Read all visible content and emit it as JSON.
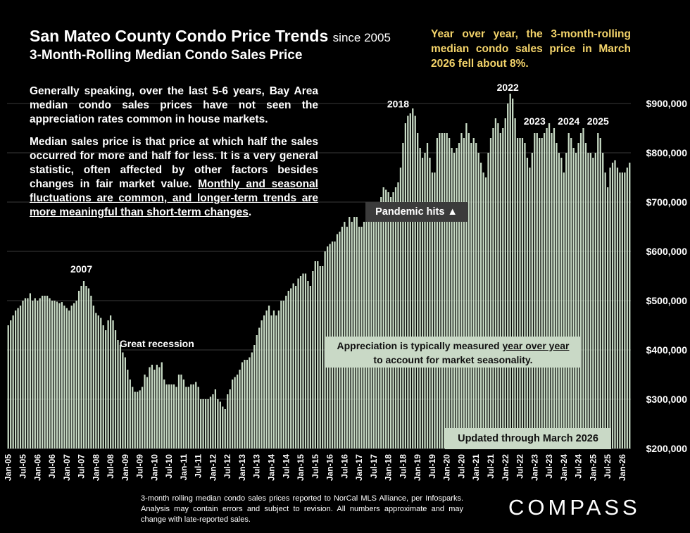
{
  "header": {
    "title": "San Mateo County Condo Price Trends",
    "title_suffix": "since 2005",
    "subtitle": "3-Month-Rolling Median Condo Sales Price"
  },
  "callout_yoy": "Year over year, the 3-month-rolling median condo sales price in March 2026 fell about 8%.",
  "commentary": {
    "p1": "Generally speaking, over the last 5-6 years, Bay Area median condo sales prices have not seen the appreciation rates common in house markets.",
    "p2_plain": "Median sales price is that price at which half the sales occurred for more and half for less. It is a very general statistic, often affected by other factors besides changes in fair market value.",
    "p2_underlined": "Monthly and seasonal fluctuations are common, and longer-term trends are more meaningful than short-term changes",
    "p2_end": "."
  },
  "boxes": {
    "pandemic": "Pandemic hits",
    "pandemic_arrow": "▲",
    "appreciation_pre": "Appreciation is typically measured ",
    "appreciation_u": "year over year",
    "appreciation_post": "to account for market seasonality.",
    "updated": "Updated through March 2026"
  },
  "footnote": "3-month rolling median condo sales prices reported to NorCal MLS Alliance, per Infosparks. Analysis may contain errors and subject to revision. All numbers approximate and may change with late-reported sales.",
  "logo": "COMPASS",
  "colors": {
    "bar": "#c9dcc6",
    "background": "#000000",
    "gridline": "#3a3a3a",
    "callout": "#f3d36a",
    "label_box": "#c9d9c6"
  },
  "chart_data": {
    "type": "bar",
    "ylim": [
      200000,
      900000
    ],
    "yticks": [
      200000,
      300000,
      400000,
      500000,
      600000,
      700000,
      800000,
      900000
    ],
    "ytick_labels": [
      "$200,000",
      "$300,000",
      "$400,000",
      "$500,000",
      "$600,000",
      "$700,000",
      "$800,000",
      "$900,000"
    ],
    "x_tick_labels": [
      "Jan-05",
      "Jul-05",
      "Jan-06",
      "Jul-06",
      "Jan-07",
      "Jul-07",
      "Jan-08",
      "Jul-08",
      "Jan-09",
      "Jul-09",
      "Jan-10",
      "Jul-10",
      "Jan-11",
      "Jul-11",
      "Jan-12",
      "Jul-12",
      "Jan-13",
      "Jul-13",
      "Jan-14",
      "Jul-14",
      "Jan-15",
      "Jul-15",
      "Jan-16",
      "Jul-16",
      "Jan-17",
      "Jul-17",
      "Jan-18",
      "Jul-18",
      "Jan-19",
      "Jul-19",
      "Jan-20",
      "Jul-20",
      "Jan-21",
      "Jul-21",
      "Jan-22",
      "Jul-22",
      "Jan-23",
      "Jul-23",
      "Jan-24",
      "Jul-24",
      "Jan-25",
      "Jul-25",
      "Jan-26"
    ],
    "annotations": [
      {
        "label": "2007",
        "index": 30
      },
      {
        "label": "Great recession",
        "index": 61
      },
      {
        "label": "2018",
        "index": 160
      },
      {
        "label": "2022",
        "index": 205
      },
      {
        "label": "2023",
        "index": 216
      },
      {
        "label": "2024",
        "index": 230
      },
      {
        "label": "2025",
        "index": 242
      }
    ],
    "values": [
      450000,
      460000,
      470000,
      480000,
      485000,
      490000,
      500000,
      505000,
      505000,
      515000,
      500000,
      505000,
      500000,
      505000,
      510000,
      510000,
      510000,
      505000,
      500000,
      500000,
      498000,
      495000,
      497000,
      490000,
      485000,
      480000,
      490000,
      495000,
      500000,
      520000,
      530000,
      540000,
      530000,
      525000,
      510000,
      490000,
      475000,
      470000,
      465000,
      450000,
      440000,
      460000,
      470000,
      460000,
      440000,
      420000,
      410000,
      395000,
      385000,
      360000,
      340000,
      325000,
      315000,
      315000,
      318000,
      325000,
      350000,
      345000,
      365000,
      370000,
      360000,
      370000,
      365000,
      375000,
      340000,
      330000,
      330000,
      330000,
      330000,
      325000,
      350000,
      350000,
      340000,
      325000,
      325000,
      330000,
      330000,
      335000,
      325000,
      300000,
      300000,
      300000,
      300000,
      305000,
      310000,
      320000,
      300000,
      295000,
      285000,
      280000,
      310000,
      320000,
      340000,
      345000,
      350000,
      360000,
      375000,
      380000,
      380000,
      385000,
      395000,
      410000,
      430000,
      445000,
      460000,
      470000,
      480000,
      490000,
      470000,
      480000,
      470000,
      480000,
      500000,
      500000,
      510000,
      520000,
      525000,
      535000,
      530000,
      545000,
      550000,
      555000,
      555000,
      540000,
      530000,
      560000,
      580000,
      580000,
      570000,
      570000,
      600000,
      610000,
      615000,
      620000,
      620000,
      635000,
      640000,
      650000,
      660000,
      650000,
      670000,
      660000,
      670000,
      670000,
      650000,
      650000,
      660000,
      670000,
      680000,
      680000,
      675000,
      680000,
      690000,
      710000,
      730000,
      725000,
      720000,
      710000,
      720000,
      730000,
      740000,
      770000,
      820000,
      860000,
      875000,
      880000,
      890000,
      875000,
      840000,
      810000,
      790000,
      800000,
      820000,
      790000,
      760000,
      760000,
      830000,
      840000,
      840000,
      840000,
      840000,
      830000,
      810000,
      800000,
      810000,
      820000,
      840000,
      830000,
      860000,
      840000,
      820000,
      830000,
      820000,
      800000,
      780000,
      760000,
      750000,
      800000,
      830000,
      850000,
      870000,
      860000,
      840000,
      850000,
      870000,
      900000,
      920000,
      910000,
      870000,
      830000,
      830000,
      830000,
      820000,
      790000,
      770000,
      800000,
      840000,
      840000,
      830000,
      830000,
      840000,
      850000,
      860000,
      840000,
      850000,
      820000,
      800000,
      790000,
      760000,
      800000,
      840000,
      830000,
      810000,
      800000,
      820000,
      840000,
      850000,
      820000,
      800000,
      800000,
      790000,
      800000,
      840000,
      830000,
      800000,
      760000,
      730000,
      770000,
      780000,
      785000,
      770000,
      760000,
      760000,
      760000,
      770000,
      780000
    ]
  }
}
